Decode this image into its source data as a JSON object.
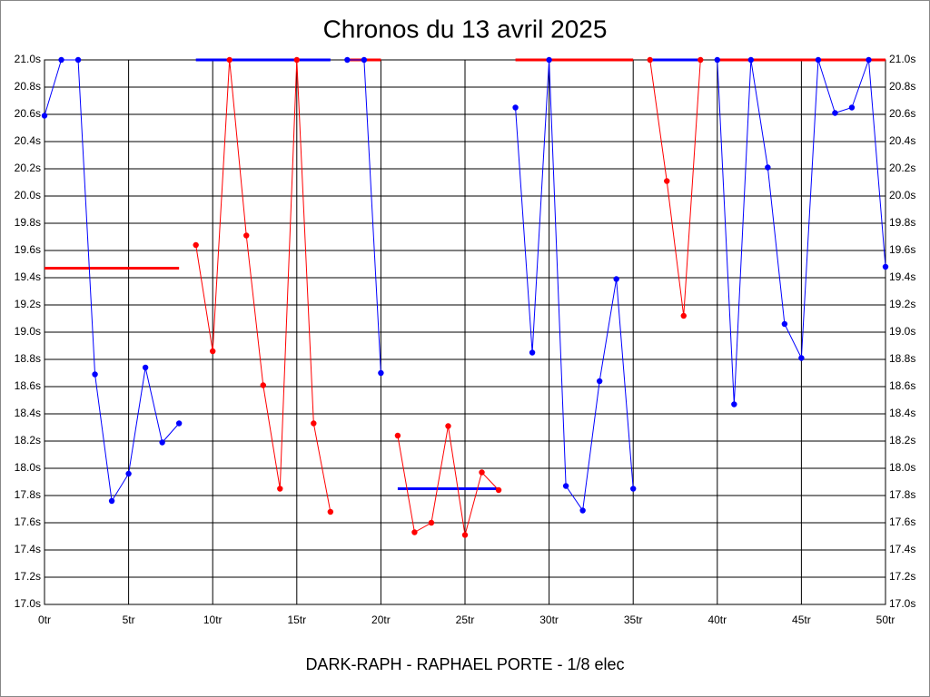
{
  "chart_data": {
    "type": "line",
    "title": "Chronos du 13 avril 2025",
    "caption": "DARK-RAPH - RAPHAEL PORTE - 1/8 elec",
    "xlim": [
      0,
      50
    ],
    "xticks": [
      {
        "value": 0,
        "label": "0tr"
      },
      {
        "value": 5,
        "label": "5tr"
      },
      {
        "value": 10,
        "label": "10tr"
      },
      {
        "value": 15,
        "label": "15tr"
      },
      {
        "value": 20,
        "label": "20tr"
      },
      {
        "value": 25,
        "label": "25tr"
      },
      {
        "value": 30,
        "label": "30tr"
      },
      {
        "value": 35,
        "label": "35tr"
      },
      {
        "value": 40,
        "label": "40tr"
      },
      {
        "value": 45,
        "label": "45tr"
      },
      {
        "value": 50,
        "label": "50tr"
      }
    ],
    "ylim": [
      17.0,
      21.0
    ],
    "yticks": [
      {
        "value": 17.0,
        "label": "17.0s"
      },
      {
        "value": 17.2,
        "label": "17.2s"
      },
      {
        "value": 17.4,
        "label": "17.4s"
      },
      {
        "value": 17.6,
        "label": "17.6s"
      },
      {
        "value": 17.8,
        "label": "17.8s"
      },
      {
        "value": 18.0,
        "label": "18.0s"
      },
      {
        "value": 18.2,
        "label": "18.2s"
      },
      {
        "value": 18.4,
        "label": "18.4s"
      },
      {
        "value": 18.6,
        "label": "18.6s"
      },
      {
        "value": 18.8,
        "label": "18.8s"
      },
      {
        "value": 19.0,
        "label": "19.0s"
      },
      {
        "value": 19.2,
        "label": "19.2s"
      },
      {
        "value": 19.4,
        "label": "19.4s"
      },
      {
        "value": 19.6,
        "label": "19.6s"
      },
      {
        "value": 19.8,
        "label": "19.8s"
      },
      {
        "value": 20.0,
        "label": "20.0s"
      },
      {
        "value": 20.2,
        "label": "20.2s"
      },
      {
        "value": 20.4,
        "label": "20.4s"
      },
      {
        "value": 20.6,
        "label": "20.6s"
      },
      {
        "value": 20.8,
        "label": "20.8s"
      },
      {
        "value": 21.0,
        "label": "21.0s"
      }
    ],
    "grid": true,
    "series": [
      {
        "color": "#0000ff",
        "x": [
          0,
          1,
          2,
          3,
          4,
          5,
          6,
          7,
          8
        ],
        "values": [
          20.59,
          21.0,
          21.0,
          18.69,
          17.76,
          17.96,
          18.74,
          18.19,
          18.33
        ]
      },
      {
        "color": "#ff0000",
        "x": [
          9,
          10,
          11,
          12,
          13,
          14,
          15,
          16,
          17
        ],
        "values": [
          19.64,
          18.86,
          21.0,
          19.71,
          18.61,
          17.85,
          21.0,
          18.33,
          17.68
        ]
      },
      {
        "color": "#0000ff",
        "x": [
          18,
          19,
          20
        ],
        "values": [
          21.0,
          21.0,
          18.7
        ]
      },
      {
        "color": "#ff0000",
        "x": [
          21,
          22,
          23,
          24,
          25,
          26,
          27
        ],
        "values": [
          18.24,
          17.53,
          17.6,
          18.31,
          17.51,
          17.97,
          17.84
        ]
      },
      {
        "color": "#0000ff",
        "x": [
          28,
          29,
          30,
          31,
          32,
          33,
          34,
          35
        ],
        "values": [
          20.65,
          18.85,
          21.0,
          17.87,
          17.69,
          18.64,
          19.39,
          17.85
        ]
      },
      {
        "color": "#ff0000",
        "x": [
          36,
          37,
          38,
          39
        ],
        "values": [
          21.0,
          20.11,
          19.12,
          21.0
        ]
      },
      {
        "color": "#0000ff",
        "x": [
          40,
          41,
          42,
          43,
          44,
          45,
          46,
          47,
          48,
          49,
          50
        ],
        "values": [
          21.0,
          18.47,
          21.0,
          20.21,
          19.06,
          18.81,
          21.0,
          20.61,
          20.65,
          21.0,
          19.48
        ]
      }
    ],
    "reference_lines": [
      {
        "color": "#ff0000",
        "x": [
          0,
          8
        ],
        "value": 19.47
      },
      {
        "color": "#0000ff",
        "x": [
          9,
          17
        ],
        "value": 21.0
      },
      {
        "color": "#ff0000",
        "x": [
          18,
          20
        ],
        "value": 21.0
      },
      {
        "color": "#0000ff",
        "x": [
          21,
          27
        ],
        "value": 17.85
      },
      {
        "color": "#ff0000",
        "x": [
          28,
          35
        ],
        "value": 21.0
      },
      {
        "color": "#0000ff",
        "x": [
          36,
          39
        ],
        "value": 21.0
      },
      {
        "color": "#ff0000",
        "x": [
          40,
          50
        ],
        "value": 21.0
      }
    ]
  }
}
